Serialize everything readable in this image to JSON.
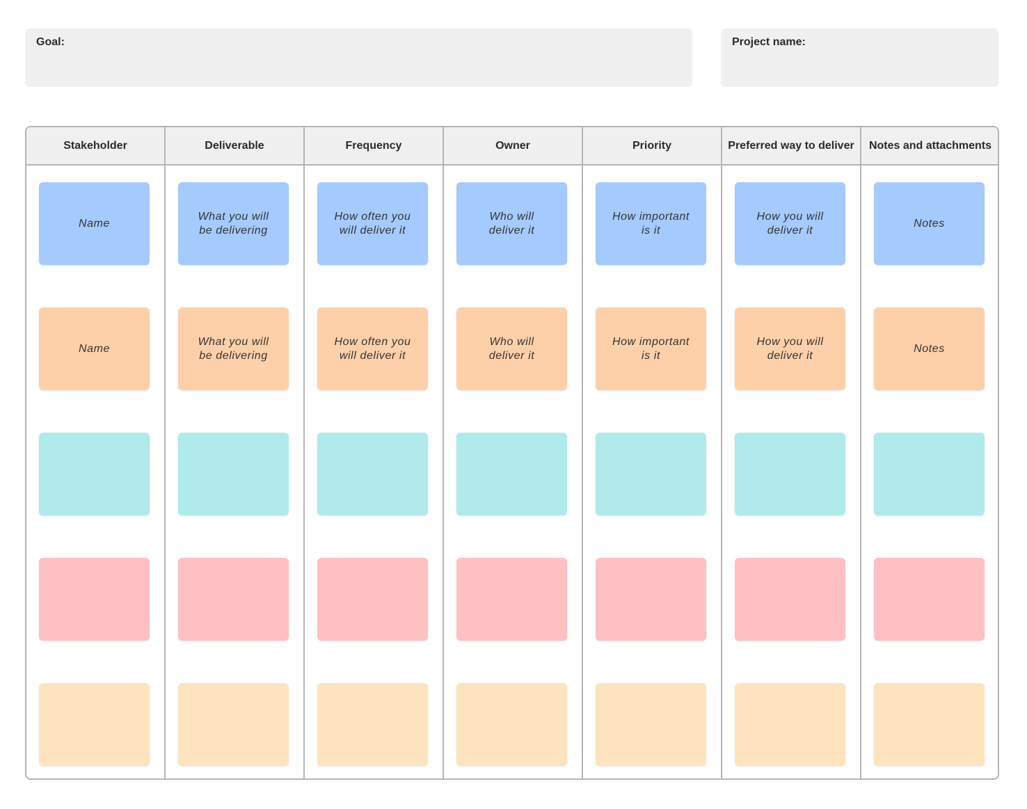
{
  "fields": {
    "goal_label": "Goal:",
    "project_label": "Project name:"
  },
  "columns": [
    {
      "label": "Stakeholder"
    },
    {
      "label": "Deliverable"
    },
    {
      "label": "Frequency"
    },
    {
      "label": "Owner"
    },
    {
      "label": "Priority"
    },
    {
      "label": "Preferred way to deliver"
    },
    {
      "label": "Notes and attachments"
    }
  ],
  "rows": [
    {
      "color": "#a4cafe",
      "texts": [
        "Name",
        "What you will be delivering",
        "How often you will deliver it",
        "Who will deliver it",
        "How important is it",
        "How you will deliver it",
        "Notes"
      ]
    },
    {
      "color": "#fed0aa",
      "texts": [
        "Name",
        "What you will be delivering",
        "How often you will deliver it",
        "Who will deliver it",
        "How important is it",
        "How you will deliver it",
        "Notes"
      ]
    },
    {
      "color": "#b1eaea",
      "texts": [
        "",
        "",
        "",
        "",
        "",
        "",
        ""
      ]
    },
    {
      "color": "#fec0c3",
      "texts": [
        "",
        "",
        "",
        "",
        "",
        "",
        ""
      ]
    },
    {
      "color": "#fee4be",
      "texts": [
        "",
        "",
        "",
        "",
        "",
        "",
        ""
      ]
    }
  ]
}
